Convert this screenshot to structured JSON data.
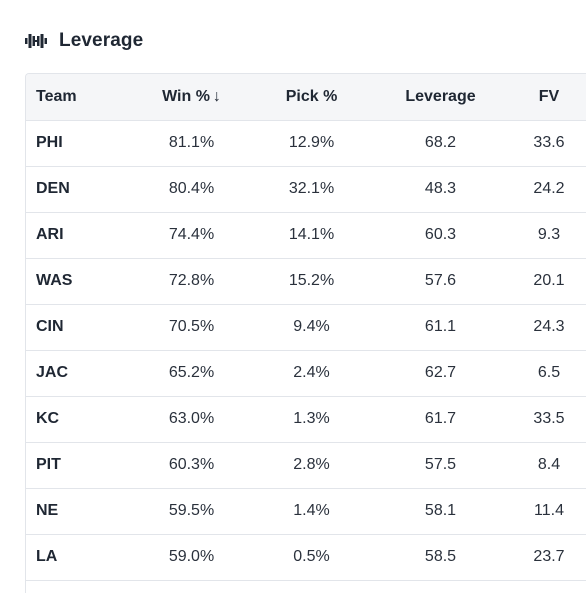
{
  "panel": {
    "title": "Leverage",
    "icon": "dumbbell-icon"
  },
  "table": {
    "headers": {
      "team": "Team",
      "win": "Win %",
      "win_sort": "↓",
      "pick": "Pick %",
      "leverage": "Leverage",
      "fv": "FV"
    },
    "rows": [
      {
        "team": "PHI",
        "win": "81.1%",
        "pick": "12.9%",
        "leverage": "68.2",
        "fv": "33.6"
      },
      {
        "team": "DEN",
        "win": "80.4%",
        "pick": "32.1%",
        "leverage": "48.3",
        "fv": "24.2"
      },
      {
        "team": "ARI",
        "win": "74.4%",
        "pick": "14.1%",
        "leverage": "60.3",
        "fv": "9.3"
      },
      {
        "team": "WAS",
        "win": "72.8%",
        "pick": "15.2%",
        "leverage": "57.6",
        "fv": "20.1"
      },
      {
        "team": "CIN",
        "win": "70.5%",
        "pick": "9.4%",
        "leverage": "61.1",
        "fv": "24.3"
      },
      {
        "team": "JAC",
        "win": "65.2%",
        "pick": "2.4%",
        "leverage": "62.7",
        "fv": "6.5"
      },
      {
        "team": "KC",
        "win": "63.0%",
        "pick": "1.3%",
        "leverage": "61.7",
        "fv": "33.5"
      },
      {
        "team": "PIT",
        "win": "60.3%",
        "pick": "2.8%",
        "leverage": "57.5",
        "fv": "8.4"
      },
      {
        "team": "NE",
        "win": "59.5%",
        "pick": "1.4%",
        "leverage": "58.1",
        "fv": "11.4"
      },
      {
        "team": "LA",
        "win": "59.0%",
        "pick": "0.5%",
        "leverage": "58.5",
        "fv": "23.7"
      }
    ]
  }
}
